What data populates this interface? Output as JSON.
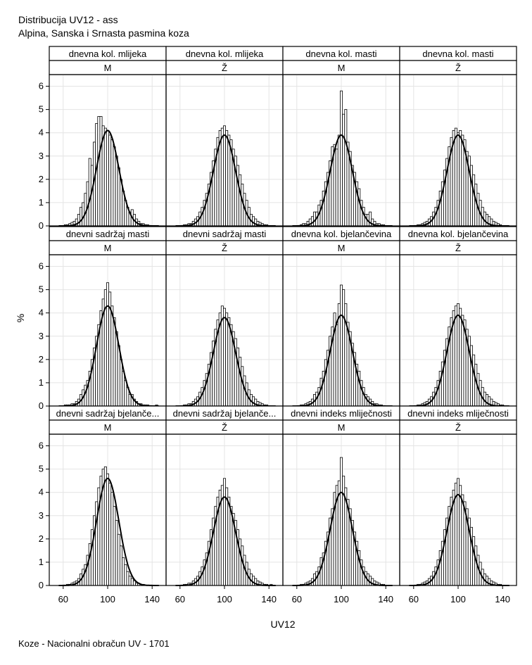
{
  "title": "Distribucija UV12 - ass",
  "subtitle": "Alpina, Sanska i Srnasta pasmina koza",
  "footnote": "Koze - Nacionalni obračun UV - 1701",
  "chart_data": {
    "type": "histogram-panel",
    "xlabel": "UV12",
    "ylabel": "%",
    "xlim": [
      50,
      150
    ],
    "ylim": [
      0,
      6.5
    ],
    "x_ticks": [
      60,
      100,
      140
    ],
    "y_ticks": [
      0,
      1,
      2,
      3,
      4,
      5,
      6
    ],
    "grid": true,
    "bin_width": 2,
    "panels": [
      {
        "trait": "dnevna kol. mlijeka",
        "sex": "M",
        "peak": 4.1,
        "x": [
          54,
          56,
          58,
          60,
          62,
          64,
          66,
          68,
          70,
          72,
          74,
          76,
          78,
          80,
          82,
          84,
          86,
          88,
          90,
          92,
          94,
          96,
          98,
          100,
          102,
          104,
          106,
          108,
          110,
          112,
          114,
          116,
          118,
          120,
          122,
          124,
          126,
          128,
          130,
          132,
          134,
          136,
          138,
          140,
          142,
          144,
          146,
          148
        ],
        "values": [
          0,
          0,
          0,
          0,
          0.05,
          0.05,
          0.1,
          0.15,
          0.2,
          0.3,
          0.5,
          0.8,
          1.0,
          1.4,
          1.9,
          2.9,
          2.6,
          3.6,
          4.4,
          4.7,
          4.7,
          4.3,
          4.2,
          4.1,
          3.9,
          3.7,
          3.4,
          3.0,
          2.5,
          2.0,
          1.5,
          1.1,
          0.8,
          0.6,
          0.7,
          0.5,
          0.3,
          0.2,
          0.1,
          0.1,
          0.05,
          0.05,
          0,
          0,
          0,
          0,
          0,
          0
        ]
      },
      {
        "trait": "dnevna kol. mlijeka",
        "sex": "Ž",
        "peak": 3.9,
        "x": [
          54,
          56,
          58,
          60,
          62,
          64,
          66,
          68,
          70,
          72,
          74,
          76,
          78,
          80,
          82,
          84,
          86,
          88,
          90,
          92,
          94,
          96,
          98,
          100,
          102,
          104,
          106,
          108,
          110,
          112,
          114,
          116,
          118,
          120,
          122,
          124,
          126,
          128,
          130,
          132,
          134,
          136,
          138,
          140,
          142,
          144,
          146,
          148
        ],
        "values": [
          0,
          0,
          0,
          0,
          0,
          0.05,
          0.05,
          0.1,
          0.1,
          0.2,
          0.3,
          0.4,
          0.6,
          0.8,
          1.1,
          1.4,
          1.8,
          2.3,
          2.8,
          3.3,
          3.8,
          4.1,
          4.2,
          4.3,
          4.1,
          3.9,
          3.7,
          3.3,
          3.0,
          2.6,
          2.2,
          1.8,
          1.4,
          1.1,
          0.8,
          0.5,
          0.4,
          0.3,
          0.2,
          0.15,
          0.1,
          0.05,
          0.05,
          0,
          0,
          0,
          0,
          0
        ]
      },
      {
        "trait": "dnevna kol. masti",
        "sex": "M",
        "peak": 3.9,
        "x": [
          54,
          56,
          58,
          60,
          62,
          64,
          66,
          68,
          70,
          72,
          74,
          76,
          78,
          80,
          82,
          84,
          86,
          88,
          90,
          92,
          94,
          96,
          98,
          100,
          102,
          104,
          106,
          108,
          110,
          112,
          114,
          116,
          118,
          120,
          122,
          124,
          126,
          128,
          130,
          132,
          134,
          136,
          138,
          140,
          142,
          144,
          146,
          148
        ],
        "values": [
          0,
          0,
          0,
          0,
          0,
          0.05,
          0.1,
          0.1,
          0.2,
          0.3,
          0.4,
          0.6,
          0.6,
          0.9,
          1.1,
          1.5,
          1.9,
          2.3,
          2.8,
          3.4,
          3.5,
          3.3,
          3.9,
          5.8,
          4.8,
          5.0,
          3.6,
          3.2,
          2.6,
          2.3,
          1.9,
          1.6,
          1.1,
          0.8,
          0.5,
          0.5,
          0.6,
          0.3,
          0.2,
          0.1,
          0.1,
          0.05,
          0.05,
          0,
          0,
          0,
          0,
          0
        ]
      },
      {
        "trait": "dnevna kol. masti",
        "sex": "Ž",
        "peak": 3.9,
        "x": [
          54,
          56,
          58,
          60,
          62,
          64,
          66,
          68,
          70,
          72,
          74,
          76,
          78,
          80,
          82,
          84,
          86,
          88,
          90,
          92,
          94,
          96,
          98,
          100,
          102,
          104,
          106,
          108,
          110,
          112,
          114,
          116,
          118,
          120,
          122,
          124,
          126,
          128,
          130,
          132,
          134,
          136,
          138,
          140,
          142,
          144,
          146,
          148
        ],
        "values": [
          0,
          0,
          0,
          0,
          0,
          0.05,
          0.05,
          0.1,
          0.15,
          0.2,
          0.3,
          0.4,
          0.6,
          0.8,
          1.1,
          1.5,
          1.9,
          2.4,
          2.9,
          3.4,
          3.8,
          4.1,
          4.2,
          4.0,
          4.1,
          3.9,
          3.7,
          3.2,
          3.0,
          2.6,
          2.2,
          1.8,
          1.4,
          1.1,
          0.8,
          0.6,
          0.5,
          0.4,
          0.3,
          0.2,
          0.15,
          0.1,
          0.05,
          0,
          0,
          0,
          0,
          0
        ]
      },
      {
        "trait": "dnevni sadržaj masti",
        "sex": "M",
        "peak": 4.3,
        "x": [
          54,
          56,
          58,
          60,
          62,
          64,
          66,
          68,
          70,
          72,
          74,
          76,
          78,
          80,
          82,
          84,
          86,
          88,
          90,
          92,
          94,
          96,
          98,
          100,
          102,
          104,
          106,
          108,
          110,
          112,
          114,
          116,
          118,
          120,
          122,
          124,
          126,
          128,
          130,
          132,
          134,
          136,
          138,
          140,
          142,
          144,
          146,
          148
        ],
        "values": [
          0,
          0,
          0,
          0,
          0.05,
          0.05,
          0.05,
          0.1,
          0.1,
          0.2,
          0.3,
          0.5,
          0.7,
          0.9,
          1.1,
          1.5,
          2.0,
          2.5,
          3.0,
          3.5,
          4.1,
          4.6,
          5.0,
          5.3,
          4.9,
          4.3,
          3.8,
          3.2,
          2.6,
          2.0,
          1.5,
          1.1,
          0.8,
          0.5,
          0.5,
          0.3,
          0.2,
          0.1,
          0.1,
          0.05,
          0.05,
          0.05,
          0,
          0,
          0,
          0.05,
          0,
          0
        ]
      },
      {
        "trait": "dnevni sadržaj masti",
        "sex": "Ž",
        "peak": 3.8,
        "x": [
          54,
          56,
          58,
          60,
          62,
          64,
          66,
          68,
          70,
          72,
          74,
          76,
          78,
          80,
          82,
          84,
          86,
          88,
          90,
          92,
          94,
          96,
          98,
          100,
          102,
          104,
          106,
          108,
          110,
          112,
          114,
          116,
          118,
          120,
          122,
          124,
          126,
          128,
          130,
          132,
          134,
          136,
          138,
          140,
          142,
          144,
          146,
          148
        ],
        "values": [
          0,
          0,
          0,
          0,
          0,
          0.05,
          0.05,
          0.1,
          0.1,
          0.2,
          0.3,
          0.4,
          0.6,
          0.8,
          1.1,
          1.4,
          1.8,
          2.3,
          2.8,
          3.3,
          3.7,
          4.0,
          4.3,
          4.2,
          4.0,
          3.8,
          3.5,
          3.2,
          2.9,
          2.5,
          2.1,
          1.7,
          1.3,
          1.0,
          0.7,
          0.5,
          0.4,
          0.3,
          0.2,
          0.15,
          0.1,
          0.05,
          0.05,
          0,
          0,
          0,
          0,
          0
        ]
      },
      {
        "trait": "dnevna kol. bjelančevina",
        "sex": "M",
        "peak": 3.9,
        "x": [
          54,
          56,
          58,
          60,
          62,
          64,
          66,
          68,
          70,
          72,
          74,
          76,
          78,
          80,
          82,
          84,
          86,
          88,
          90,
          92,
          94,
          96,
          98,
          100,
          102,
          104,
          106,
          108,
          110,
          112,
          114,
          116,
          118,
          120,
          122,
          124,
          126,
          128,
          130,
          132,
          134,
          136,
          138,
          140,
          142,
          144,
          146,
          148
        ],
        "values": [
          0,
          0,
          0,
          0,
          0,
          0.05,
          0.05,
          0.1,
          0.15,
          0.2,
          0.3,
          0.5,
          0.6,
          0.8,
          1.2,
          1.5,
          2.0,
          2.4,
          3.0,
          3.4,
          4.0,
          3.5,
          4.4,
          5.2,
          5.0,
          4.4,
          3.6,
          3.2,
          2.7,
          2.3,
          1.8,
          1.5,
          1.1,
          0.8,
          0.5,
          0.4,
          0.3,
          0.2,
          0.1,
          0.1,
          0.05,
          0.05,
          0,
          0,
          0,
          0,
          0,
          0
        ]
      },
      {
        "trait": "dnevna kol. bjelančevina",
        "sex": "Ž",
        "peak": 3.9,
        "x": [
          54,
          56,
          58,
          60,
          62,
          64,
          66,
          68,
          70,
          72,
          74,
          76,
          78,
          80,
          82,
          84,
          86,
          88,
          90,
          92,
          94,
          96,
          98,
          100,
          102,
          104,
          106,
          108,
          110,
          112,
          114,
          116,
          118,
          120,
          122,
          124,
          126,
          128,
          130,
          132,
          134,
          136,
          138,
          140,
          142,
          144,
          146,
          148
        ],
        "values": [
          0,
          0,
          0,
          0,
          0,
          0.05,
          0.05,
          0.1,
          0.15,
          0.2,
          0.3,
          0.4,
          0.6,
          0.8,
          1.1,
          1.5,
          1.9,
          2.4,
          2.9,
          3.4,
          3.8,
          4.1,
          4.3,
          4.4,
          4.2,
          3.9,
          3.7,
          3.3,
          3.0,
          2.6,
          2.2,
          1.8,
          1.4,
          1.1,
          0.8,
          0.6,
          0.5,
          0.4,
          0.3,
          0.2,
          0.15,
          0.1,
          0.05,
          0.05,
          0,
          0,
          0,
          0
        ]
      },
      {
        "trait": "dnevni sadržaj bjelanče...",
        "sex": "M",
        "peak": 4.6,
        "x": [
          54,
          56,
          58,
          60,
          62,
          64,
          66,
          68,
          70,
          72,
          74,
          76,
          78,
          80,
          82,
          84,
          86,
          88,
          90,
          92,
          94,
          96,
          98,
          100,
          102,
          104,
          106,
          108,
          110,
          112,
          114,
          116,
          118,
          120,
          122,
          124,
          126,
          128,
          130,
          132,
          134,
          136,
          138,
          140,
          142,
          144,
          146,
          148
        ],
        "values": [
          0,
          0,
          0,
          0,
          0,
          0.05,
          0.05,
          0.1,
          0.15,
          0.2,
          0.3,
          0.5,
          0.7,
          0.9,
          1.3,
          1.8,
          2.4,
          3.0,
          3.6,
          4.2,
          4.7,
          5.0,
          5.1,
          4.8,
          4.4,
          4.0,
          3.4,
          2.8,
          2.2,
          1.7,
          1.2,
          0.9,
          0.6,
          0.4,
          0.3,
          0.2,
          0.1,
          0.1,
          0.05,
          0.05,
          0,
          0,
          0,
          0,
          0,
          0,
          0,
          0
        ]
      },
      {
        "trait": "dnevni sadržaj bjelanče...",
        "sex": "Ž",
        "peak": 3.8,
        "x": [
          54,
          56,
          58,
          60,
          62,
          64,
          66,
          68,
          70,
          72,
          74,
          76,
          78,
          80,
          82,
          84,
          86,
          88,
          90,
          92,
          94,
          96,
          98,
          100,
          102,
          104,
          106,
          108,
          110,
          112,
          114,
          116,
          118,
          120,
          122,
          124,
          126,
          128,
          130,
          132,
          134,
          136,
          138,
          140,
          142,
          144,
          146,
          148
        ],
        "values": [
          0,
          0,
          0,
          0,
          0,
          0.05,
          0.05,
          0.1,
          0.1,
          0.2,
          0.3,
          0.4,
          0.6,
          0.8,
          1.1,
          1.4,
          1.9,
          2.4,
          2.9,
          3.4,
          3.8,
          4.1,
          4.3,
          4.6,
          4.2,
          3.8,
          3.4,
          3.1,
          2.8,
          2.4,
          2.0,
          1.7,
          1.3,
          1.0,
          0.7,
          0.5,
          0.4,
          0.3,
          0.2,
          0.15,
          0.1,
          0.05,
          0.05,
          0,
          0.05,
          0,
          0,
          0
        ]
      },
      {
        "trait": "dnevni indeks mliječnosti",
        "sex": "M",
        "peak": 4.0,
        "x": [
          54,
          56,
          58,
          60,
          62,
          64,
          66,
          68,
          70,
          72,
          74,
          76,
          78,
          80,
          82,
          84,
          86,
          88,
          90,
          92,
          94,
          96,
          98,
          100,
          102,
          104,
          106,
          108,
          110,
          112,
          114,
          116,
          118,
          120,
          122,
          124,
          126,
          128,
          130,
          132,
          134,
          136,
          138,
          140,
          142,
          144,
          146,
          148
        ],
        "values": [
          0,
          0,
          0,
          0,
          0,
          0.05,
          0.05,
          0.1,
          0.15,
          0.2,
          0.3,
          0.5,
          0.6,
          0.8,
          1.2,
          1.4,
          1.9,
          2.3,
          2.9,
          3.3,
          4.0,
          4.3,
          4.5,
          5.5,
          4.7,
          4.2,
          3.7,
          3.3,
          2.8,
          2.3,
          1.9,
          1.5,
          1.1,
          0.8,
          0.6,
          0.5,
          0.4,
          0.3,
          0.2,
          0.15,
          0.1,
          0.05,
          0.05,
          0,
          0,
          0,
          0,
          0
        ]
      },
      {
        "trait": "dnevni indeks mliječnosti",
        "sex": "Ž",
        "peak": 3.9,
        "x": [
          54,
          56,
          58,
          60,
          62,
          64,
          66,
          68,
          70,
          72,
          74,
          76,
          78,
          80,
          82,
          84,
          86,
          88,
          90,
          92,
          94,
          96,
          98,
          100,
          102,
          104,
          106,
          108,
          110,
          112,
          114,
          116,
          118,
          120,
          122,
          124,
          126,
          128,
          130,
          132,
          134,
          136,
          138,
          140,
          142,
          144,
          146,
          148
        ],
        "values": [
          0,
          0,
          0,
          0,
          0,
          0.05,
          0.05,
          0.1,
          0.15,
          0.2,
          0.3,
          0.4,
          0.6,
          0.8,
          1.1,
          1.5,
          1.9,
          2.4,
          2.9,
          3.4,
          3.8,
          4.1,
          4.4,
          4.6,
          4.3,
          3.9,
          3.6,
          3.3,
          2.9,
          2.5,
          2.1,
          1.7,
          1.3,
          1.0,
          0.7,
          0.5,
          0.4,
          0.3,
          0.2,
          0.15,
          0.1,
          0.05,
          0.05,
          0,
          0,
          0,
          0,
          0
        ]
      }
    ]
  }
}
